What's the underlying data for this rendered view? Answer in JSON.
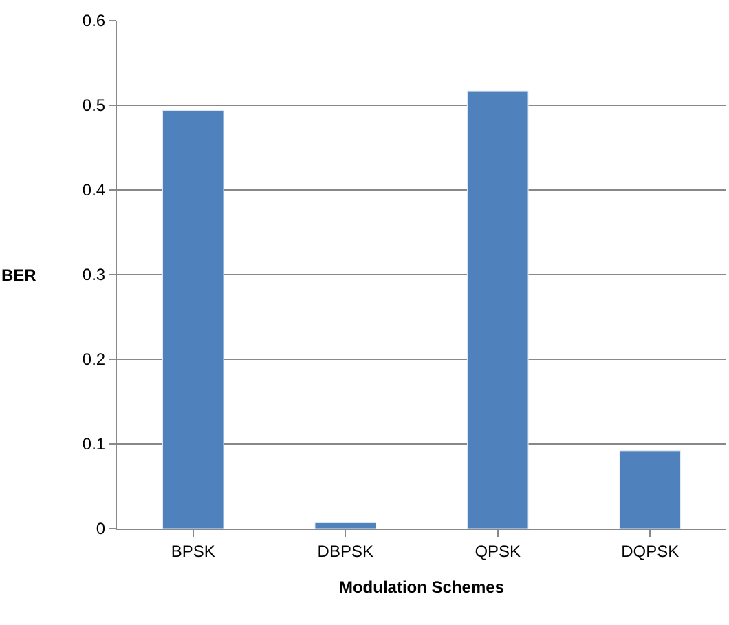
{
  "chart_data": {
    "type": "bar",
    "xlabel": "Modulation Schemes",
    "ylabel": "BER",
    "categories": [
      "BPSK",
      "DBPSK",
      "QPSK",
      "DQPSK"
    ],
    "values": [
      0.494,
      0.007,
      0.517,
      0.092
    ],
    "color": "#4f81bd",
    "ylim": [
      0,
      0.6
    ],
    "yticks": [
      0,
      0.1,
      0.2,
      0.3,
      0.4,
      0.5,
      0.6
    ],
    "grid": "y"
  }
}
